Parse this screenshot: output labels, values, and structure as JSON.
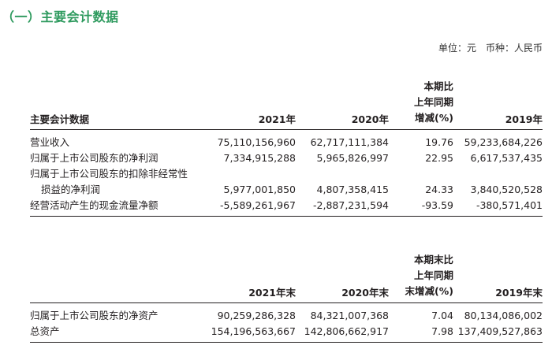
{
  "section_title": "（一）主要会计数据",
  "unit_note": "单位：元　币种：人民币",
  "table1": {
    "headers": {
      "item": "主要会计数据",
      "y2021": "2021年",
      "y2020": "2020年",
      "change_l1": "本期比",
      "change_l2": "上年同期",
      "change_l3": "增减(%)",
      "y2019": "2019年"
    },
    "rows": [
      {
        "label": "营业收入",
        "v2021": "75,110,156,960",
        "v2020": "62,717,111,384",
        "change": "19.76",
        "v2019": "59,233,684,226"
      },
      {
        "label": "归属于上市公司股东的净利润",
        "v2021": "7,334,915,288",
        "v2020": "5,965,826,997",
        "change": "22.95",
        "v2019": "6,617,537,435"
      },
      {
        "label": "归属于上市公司股东的扣除非经常性",
        "v2021": "",
        "v2020": "",
        "change": "",
        "v2019": ""
      },
      {
        "label": "损益的净利润",
        "v2021": "5,977,001,850",
        "v2020": "4,807,358,415",
        "change": "24.33",
        "v2019": "3,840,520,528"
      },
      {
        "label": "经营活动产生的现金流量净额",
        "v2021": "-5,589,261,967",
        "v2020": "-2,887,231,594",
        "change": "-93.59",
        "v2019": "-380,571,401"
      }
    ]
  },
  "table2": {
    "headers": {
      "item": "",
      "y2021": "2021年末",
      "y2020": "2020年末",
      "change_l1": "本期末比",
      "change_l2": "上年同期",
      "change_l3": "末增减(%)",
      "y2019": "2019年末"
    },
    "rows": [
      {
        "label": "归属于上市公司股东的净资产",
        "v2021": "90,259,286,328",
        "v2020": "84,321,007,368",
        "change": "7.04",
        "v2019": "80,134,086,002"
      },
      {
        "label": "总资产",
        "v2021": "154,196,563,667",
        "v2020": "142,806,662,917",
        "change": "7.98",
        "v2019": "137,409,527,863"
      }
    ]
  }
}
